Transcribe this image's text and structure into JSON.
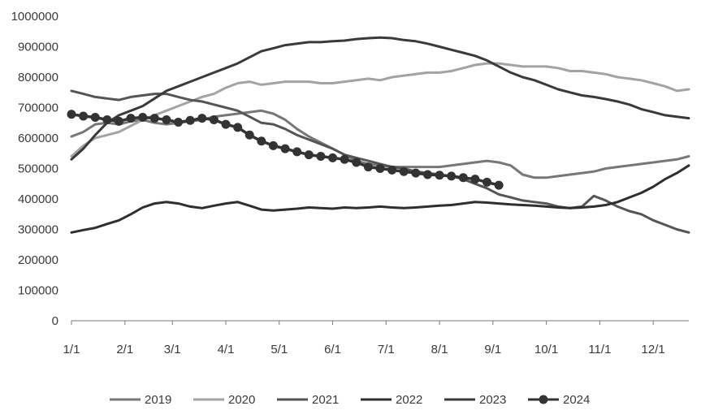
{
  "chart_data": {
    "type": "line",
    "title": "",
    "xlabel": "",
    "ylabel": "",
    "ylim": [
      0,
      1000000
    ],
    "yticks": [
      0,
      100000,
      200000,
      300000,
      400000,
      500000,
      600000,
      700000,
      800000,
      900000,
      1000000
    ],
    "ytick_labels": [
      "0",
      "100000",
      "200000",
      "300000",
      "400000",
      "500000",
      "600000",
      "700000",
      "800000",
      "900000",
      "1000000"
    ],
    "xlim": [
      1,
      53
    ],
    "xticks": [
      1,
      5.5,
      9.5,
      14,
      18.5,
      23,
      27.5,
      32,
      36.5,
      41,
      45.5,
      50
    ],
    "xtick_labels": [
      "1/1",
      "2/1",
      "3/1",
      "4/1",
      "5/1",
      "6/1",
      "7/1",
      "8/1",
      "9/1",
      "10/1",
      "11/1",
      "12/1"
    ],
    "grid": false,
    "legend_position": "bottom",
    "x_unit": "week",
    "series": [
      {
        "name": "2019",
        "color": "#777777",
        "marker": false,
        "x": [
          1,
          2,
          3,
          4,
          5,
          6,
          7,
          8,
          9,
          10,
          11,
          12,
          13,
          14,
          15,
          16,
          17,
          18,
          19,
          20,
          21,
          22,
          23,
          24,
          25,
          26,
          27,
          28,
          29,
          30,
          31,
          32,
          33,
          34,
          35,
          36,
          37,
          38,
          39,
          40,
          41,
          42,
          43,
          44,
          45,
          46,
          47,
          48,
          49,
          50,
          51,
          52,
          53
        ],
        "values": [
          605000,
          620000,
          645000,
          650000,
          645000,
          655000,
          660000,
          650000,
          645000,
          650000,
          655000,
          660000,
          670000,
          675000,
          680000,
          685000,
          690000,
          680000,
          660000,
          630000,
          605000,
          585000,
          565000,
          545000,
          525000,
          515000,
          510000,
          505000,
          505000,
          505000,
          505000,
          505000,
          510000,
          515000,
          520000,
          525000,
          520000,
          510000,
          480000,
          470000,
          470000,
          475000,
          480000,
          485000,
          490000,
          500000,
          505000,
          510000,
          515000,
          520000,
          525000,
          530000,
          540000
        ]
      },
      {
        "name": "2020",
        "color": "#a3a3a3",
        "marker": false,
        "x": [
          1,
          2,
          3,
          4,
          5,
          6,
          7,
          8,
          9,
          10,
          11,
          12,
          13,
          14,
          15,
          16,
          17,
          18,
          19,
          20,
          21,
          22,
          23,
          24,
          25,
          26,
          27,
          28,
          29,
          30,
          31,
          32,
          33,
          34,
          35,
          36,
          37,
          38,
          39,
          40,
          41,
          42,
          43,
          44,
          45,
          46,
          47,
          48,
          49,
          50,
          51,
          52,
          53
        ],
        "values": [
          540000,
          575000,
          600000,
          610000,
          620000,
          640000,
          660000,
          675000,
          690000,
          705000,
          720000,
          735000,
          745000,
          765000,
          780000,
          785000,
          775000,
          780000,
          785000,
          785000,
          785000,
          780000,
          780000,
          785000,
          790000,
          795000,
          790000,
          800000,
          805000,
          810000,
          815000,
          815000,
          820000,
          830000,
          840000,
          845000,
          845000,
          840000,
          835000,
          835000,
          835000,
          830000,
          820000,
          820000,
          815000,
          810000,
          800000,
          795000,
          790000,
          780000,
          770000,
          755000,
          760000
        ]
      },
      {
        "name": "2021",
        "color": "#555555",
        "marker": false,
        "x": [
          1,
          2,
          3,
          4,
          5,
          6,
          7,
          8,
          9,
          10,
          11,
          12,
          13,
          14,
          15,
          16,
          17,
          18,
          19,
          20,
          21,
          22,
          23,
          24,
          25,
          26,
          27,
          28,
          29,
          30,
          31,
          32,
          33,
          34,
          35,
          36,
          37,
          38,
          39,
          40,
          41,
          42,
          43,
          44,
          45,
          46,
          47,
          48,
          49,
          50,
          51,
          52,
          53
        ],
        "values": [
          755000,
          745000,
          735000,
          730000,
          725000,
          735000,
          740000,
          745000,
          745000,
          735000,
          725000,
          720000,
          710000,
          700000,
          690000,
          670000,
          650000,
          645000,
          630000,
          610000,
          595000,
          580000,
          565000,
          545000,
          535000,
          525000,
          515000,
          505000,
          500000,
          490000,
          485000,
          480000,
          475000,
          465000,
          450000,
          435000,
          415000,
          405000,
          395000,
          390000,
          385000,
          375000,
          370000,
          375000,
          410000,
          395000,
          375000,
          360000,
          350000,
          330000,
          315000,
          300000,
          290000
        ]
      },
      {
        "name": "2022",
        "color": "#2f2f2f",
        "marker": false,
        "x": [
          1,
          2,
          3,
          4,
          5,
          6,
          7,
          8,
          9,
          10,
          11,
          12,
          13,
          14,
          15,
          16,
          17,
          18,
          19,
          20,
          21,
          22,
          23,
          24,
          25,
          26,
          27,
          28,
          29,
          30,
          31,
          32,
          33,
          34,
          35,
          36,
          37,
          38,
          39,
          40,
          41,
          42,
          43,
          44,
          45,
          46,
          47,
          48,
          49,
          50,
          51,
          52,
          53
        ],
        "values": [
          290000,
          298000,
          305000,
          318000,
          330000,
          350000,
          372000,
          385000,
          390000,
          385000,
          375000,
          370000,
          378000,
          385000,
          390000,
          378000,
          365000,
          362000,
          365000,
          368000,
          372000,
          370000,
          368000,
          372000,
          370000,
          372000,
          375000,
          372000,
          370000,
          372000,
          375000,
          378000,
          380000,
          385000,
          390000,
          388000,
          385000,
          382000,
          380000,
          378000,
          375000,
          372000,
          370000,
          372000,
          375000,
          380000,
          390000,
          405000,
          420000,
          440000,
          465000,
          485000,
          510000
        ]
      },
      {
        "name": "2023",
        "color": "#3a3a3a",
        "marker": false,
        "x": [
          1,
          2,
          3,
          4,
          5,
          6,
          7,
          8,
          9,
          10,
          11,
          12,
          13,
          14,
          15,
          16,
          17,
          18,
          19,
          20,
          21,
          22,
          23,
          24,
          25,
          26,
          27,
          28,
          29,
          30,
          31,
          32,
          33,
          34,
          35,
          36,
          37,
          38,
          39,
          40,
          41,
          42,
          43,
          44,
          45,
          46,
          47,
          48,
          49,
          50,
          51,
          52,
          53
        ],
        "values": [
          530000,
          565000,
          610000,
          650000,
          675000,
          690000,
          705000,
          730000,
          755000,
          770000,
          785000,
          800000,
          815000,
          830000,
          845000,
          865000,
          885000,
          895000,
          905000,
          910000,
          915000,
          915000,
          918000,
          920000,
          925000,
          928000,
          930000,
          928000,
          922000,
          918000,
          910000,
          900000,
          890000,
          880000,
          870000,
          855000,
          835000,
          815000,
          800000,
          790000,
          775000,
          760000,
          750000,
          740000,
          735000,
          728000,
          720000,
          710000,
          695000,
          685000,
          675000,
          670000,
          665000
        ]
      },
      {
        "name": "2024",
        "color": "#333333",
        "marker": true,
        "x": [
          1,
          2,
          3,
          4,
          5,
          6,
          7,
          8,
          9,
          10,
          11,
          12,
          13,
          14,
          15,
          16,
          17,
          18,
          19,
          20,
          21,
          22,
          23,
          24,
          25,
          26,
          27,
          28,
          29,
          30,
          31,
          32,
          33,
          34,
          35,
          36,
          37
        ],
        "values": [
          678000,
          672000,
          668000,
          660000,
          655000,
          665000,
          668000,
          665000,
          660000,
          652000,
          658000,
          665000,
          660000,
          645000,
          635000,
          610000,
          590000,
          575000,
          565000,
          555000,
          545000,
          540000,
          535000,
          530000,
          520000,
          505000,
          500000,
          495000,
          490000,
          485000,
          480000,
          478000,
          475000,
          470000,
          465000,
          455000,
          445000
        ]
      }
    ]
  }
}
